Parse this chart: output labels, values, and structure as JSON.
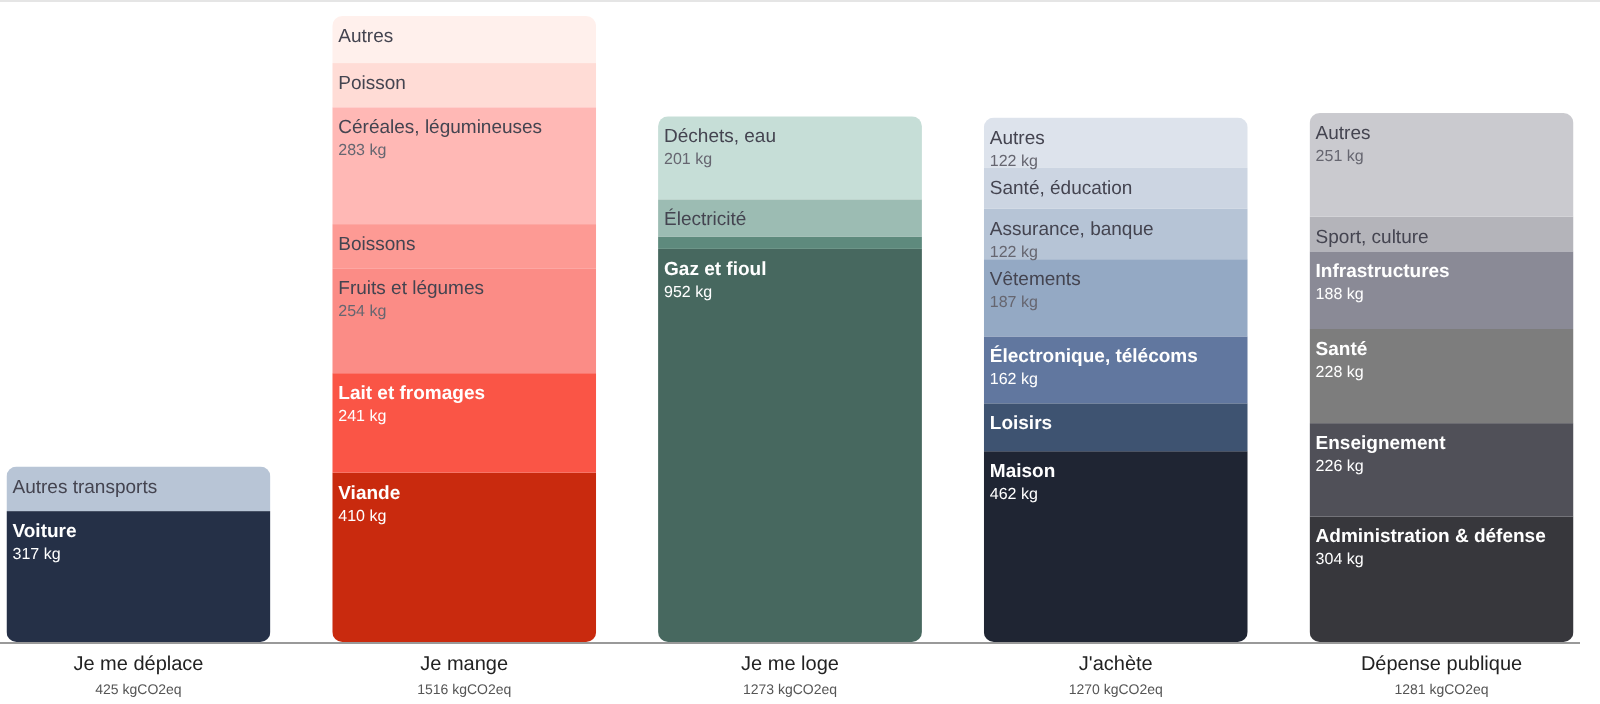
{
  "chart_data": {
    "type": "bar",
    "stacked": true,
    "categories": [
      "Je me déplace",
      "Je mange",
      "Je me loge",
      "J'achète",
      "Dépense publique"
    ],
    "totals": [
      "425 kgCO2eq",
      "1516 kgCO2eq",
      "1273 kgCO2eq",
      "1270 kgCO2eq",
      "1281 kgCO2eq"
    ],
    "series": [
      {
        "name": "Voiture",
        "color": "#253047",
        "values": [
          317,
          null,
          null,
          null,
          null
        ],
        "value_labels": [
          "317 kg",
          null,
          null,
          null,
          null
        ]
      },
      {
        "name": "Autres transports",
        "color": "#b8c5d6",
        "values": [
          108,
          null,
          null,
          null,
          null
        ]
      },
      {
        "name": "Viande",
        "color": "#c92a0e",
        "values": [
          null,
          410,
          null,
          null,
          null
        ],
        "value_labels": [
          null,
          "410 kg",
          null,
          null,
          null
        ]
      },
      {
        "name": "Lait et fromages",
        "color": "#fa5546",
        "values": [
          null,
          241,
          null,
          null,
          null
        ],
        "value_labels": [
          null,
          "241 kg",
          null,
          null,
          null
        ]
      },
      {
        "name": "Fruits et légumes",
        "color": "#fb8c86",
        "values": [
          null,
          254,
          null,
          null,
          null
        ],
        "value_labels": [
          null,
          "254 kg",
          null,
          null,
          null
        ]
      },
      {
        "name": "Boissons",
        "color": "#fd9a94",
        "values": [
          null,
          107,
          null,
          null,
          null
        ]
      },
      {
        "name": "Céréales, légumineuses",
        "color": "#ffb8b5",
        "values": [
          null,
          283,
          null,
          null,
          null
        ],
        "value_labels": [
          null,
          "283 kg",
          null,
          null,
          null
        ]
      },
      {
        "name": "Poisson",
        "color": "#ffdcd6",
        "values": [
          null,
          107,
          null,
          null,
          null
        ]
      },
      {
        "name": "Autres",
        "color": "#fff0ec",
        "values": [
          null,
          114,
          null,
          null,
          null
        ]
      },
      {
        "name": "Gaz et fioul",
        "color": "#47685f",
        "values": [
          null,
          null,
          952,
          null,
          null
        ],
        "value_labels": [
          null,
          null,
          "952 kg",
          null,
          null
        ]
      },
      {
        "color": "#5e8a7d",
        "values": [
          null,
          null,
          30,
          null,
          null
        ]
      },
      {
        "name": "Électricité",
        "color": "#9cbcb3",
        "values": [
          null,
          null,
          90,
          null,
          null
        ]
      },
      {
        "name": "Déchets, eau",
        "color": "#c6ded7",
        "values": [
          null,
          null,
          201,
          null,
          null
        ],
        "value_labels": [
          null,
          null,
          "201 kg",
          null,
          null
        ]
      },
      {
        "name": "Maison",
        "color": "#1f2533",
        "values": [
          null,
          null,
          null,
          462,
          null
        ],
        "value_labels": [
          null,
          null,
          null,
          "462 kg",
          null
        ]
      },
      {
        "name": "Loisirs",
        "color": "#3e5371",
        "values": [
          null,
          null,
          null,
          116,
          null
        ]
      },
      {
        "name": "Électronique, télécoms",
        "color": "#61779f",
        "values": [
          null,
          null,
          null,
          162,
          null
        ],
        "value_labels": [
          null,
          null,
          null,
          "162 kg",
          null
        ]
      },
      {
        "name": "Vêtements",
        "color": "#94a9c4",
        "values": [
          null,
          null,
          null,
          187,
          null
        ],
        "value_labels": [
          null,
          null,
          null,
          "187 kg",
          null
        ]
      },
      {
        "name": "Assurance, banque",
        "color": "#b6c4d6",
        "values": [
          null,
          null,
          null,
          122,
          null
        ],
        "value_labels": [
          null,
          null,
          null,
          "122 kg",
          null
        ]
      },
      {
        "name": "Santé, éducation",
        "color": "#ccd5e2",
        "values": [
          null,
          null,
          null,
          99,
          null
        ]
      },
      {
        "name": "Autres",
        "color": "#dde3ec",
        "values": [
          null,
          null,
          null,
          122,
          null
        ],
        "value_labels": [
          null,
          null,
          null,
          "122 kg",
          null
        ]
      },
      {
        "name": "Administration & défense",
        "color": "#37373c",
        "values": [
          null,
          null,
          null,
          null,
          304
        ],
        "value_labels": [
          null,
          null,
          null,
          null,
          "304 kg"
        ]
      },
      {
        "name": "Enseignement",
        "color": "#505058",
        "values": [
          null,
          null,
          null,
          null,
          226
        ],
        "value_labels": [
          null,
          null,
          null,
          null,
          "226 kg"
        ]
      },
      {
        "name": "Santé",
        "color": "#7d7d7d",
        "values": [
          null,
          null,
          null,
          null,
          228
        ],
        "value_labels": [
          null,
          null,
          null,
          null,
          "228 kg"
        ]
      },
      {
        "name": "Infrastructures",
        "color": "#8a8a96",
        "values": [
          null,
          null,
          null,
          null,
          188
        ],
        "value_labels": [
          null,
          null,
          null,
          null,
          "188 kg"
        ]
      },
      {
        "name": "Sport, culture",
        "color": "#b4b4ba",
        "values": [
          null,
          null,
          null,
          null,
          84
        ]
      },
      {
        "name": "Autres",
        "color": "#cacacf",
        "values": [
          null,
          null,
          null,
          null,
          251
        ],
        "value_labels": [
          null,
          null,
          null,
          null,
          "251 kg"
        ]
      }
    ]
  }
}
